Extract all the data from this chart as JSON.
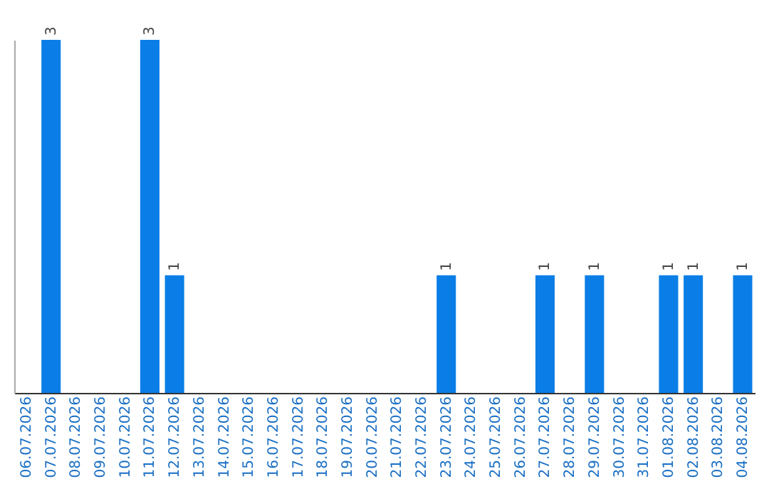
{
  "chart_data": {
    "type": "bar",
    "categories": [
      "06.07.2026",
      "07.07.2026",
      "08.07.2026",
      "09.07.2026",
      "10.07.2026",
      "11.07.2026",
      "12.07.2026",
      "13.07.2026",
      "14.07.2026",
      "15.07.2026",
      "16.07.2026",
      "17.07.2026",
      "18.07.2026",
      "19.07.2026",
      "20.07.2026",
      "21.07.2026",
      "22.07.2026",
      "23.07.2026",
      "24.07.2026",
      "25.07.2026",
      "26.07.2026",
      "27.07.2026",
      "28.07.2026",
      "29.07.2026",
      "30.07.2026",
      "31.07.2026",
      "01.08.2026",
      "02.08.2026",
      "03.08.2026",
      "04.08.2026"
    ],
    "values": [
      0,
      3,
      0,
      0,
      0,
      3,
      1,
      0,
      0,
      0,
      0,
      0,
      0,
      0,
      0,
      0,
      0,
      1,
      0,
      0,
      0,
      1,
      0,
      1,
      0,
      0,
      1,
      1,
      0,
      1
    ],
    "value_labels": [
      null,
      "3",
      null,
      null,
      null,
      "3",
      "1",
      null,
      null,
      null,
      null,
      null,
      null,
      null,
      null,
      null,
      null,
      "1",
      null,
      null,
      null,
      "1",
      null,
      "1",
      null,
      null,
      "1",
      "1",
      null,
      "1"
    ],
    "color": "#0a7ee6",
    "grid": false,
    "tick_labels": "x"
  }
}
